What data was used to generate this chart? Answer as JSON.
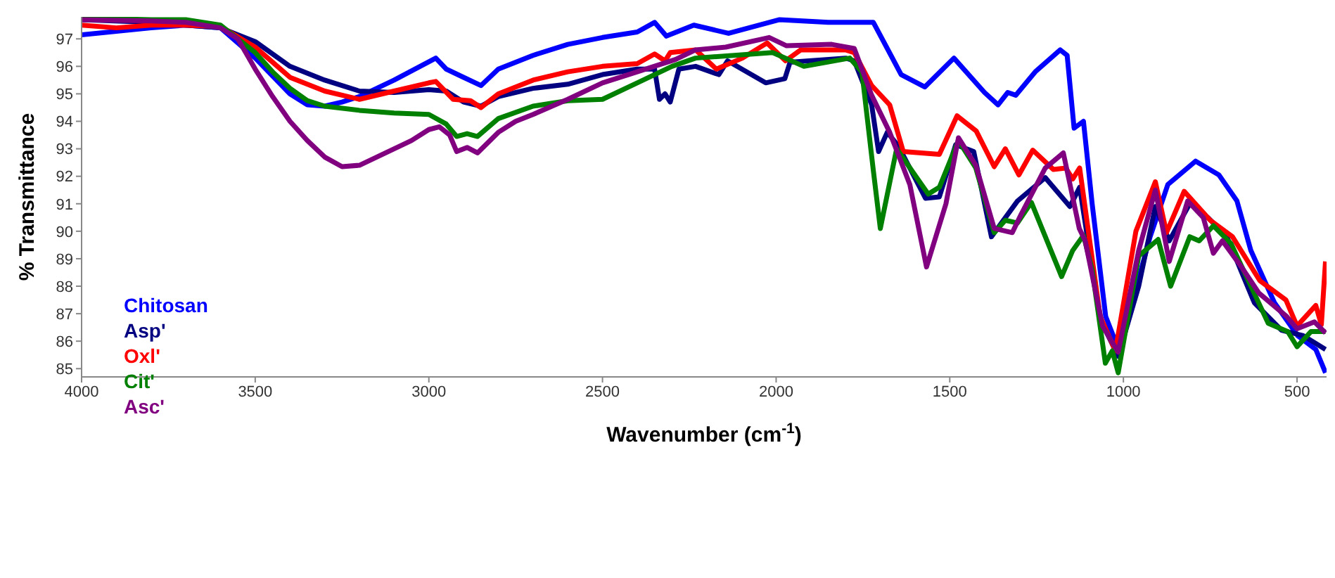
{
  "chart_data": {
    "type": "line",
    "xlabel": "Wavenumber (cm$^{-1}$)",
    "ylabel": "% Transmittance",
    "xlim": [
      4000,
      415
    ],
    "ylim": [
      84.7,
      97.8
    ],
    "xticks": [
      4000,
      3500,
      3000,
      2500,
      2000,
      1500,
      1000,
      500
    ],
    "yticks": [
      85,
      86,
      87,
      88,
      89,
      90,
      91,
      92,
      93,
      94,
      95,
      96,
      97
    ],
    "legend": "left",
    "marker": "none",
    "line_style": "solid",
    "series": [
      {
        "name": "Chitosan",
        "color": "#0000ff",
        "x": [
          4000,
          3800,
          3700,
          3600,
          3500,
          3400,
          3350,
          3300,
          3250,
          3200,
          3100,
          2980,
          2950,
          2900,
          2850,
          2800,
          2700,
          2600,
          2500,
          2400,
          2350,
          2316,
          2237,
          2137,
          1990,
          1850,
          1720,
          1640,
          1572,
          1488,
          1400,
          1361,
          1333,
          1310,
          1254,
          1182,
          1162,
          1142,
          1115,
          1090,
          1051,
          1011,
          975,
          923,
          872,
          792,
          725,
          673,
          633,
          565,
          498,
          446,
          418
        ],
        "values": [
          97.15,
          97.4,
          97.5,
          97.4,
          96.3,
          95.0,
          94.6,
          94.55,
          94.7,
          94.9,
          95.5,
          96.3,
          95.9,
          95.6,
          95.3,
          95.9,
          96.4,
          96.8,
          97.05,
          97.25,
          97.6,
          97.1,
          97.5,
          97.2,
          97.7,
          97.6,
          97.6,
          95.7,
          95.25,
          96.3,
          95.05,
          94.6,
          95.05,
          94.95,
          95.8,
          96.6,
          96.4,
          93.75,
          94.0,
          91.0,
          86.9,
          85.6,
          87.4,
          89.8,
          91.7,
          92.55,
          92.05,
          91.1,
          89.3,
          87.4,
          86.2,
          85.7,
          84.85
        ]
      },
      {
        "name": "Asp'",
        "color": "#000080",
        "x": [
          4000,
          3800,
          3700,
          3600,
          3500,
          3400,
          3300,
          3200,
          3100,
          3000,
          2950,
          2900,
          2850,
          2800,
          2700,
          2600,
          2500,
          2400,
          2350,
          2336,
          2320,
          2305,
          2280,
          2232,
          2165,
          2140,
          2030,
          1975,
          1960,
          1800,
          1775,
          1725,
          1705,
          1680,
          1648,
          1570,
          1530,
          1483,
          1431,
          1380,
          1305,
          1225,
          1154,
          1126,
          1067,
          1015,
          956,
          908,
          868,
          809,
          757,
          702,
          623,
          545,
          482,
          418
        ],
        "values": [
          97.7,
          97.6,
          97.5,
          97.4,
          96.9,
          96.0,
          95.5,
          95.1,
          95.05,
          95.15,
          95.1,
          94.7,
          94.55,
          94.9,
          95.2,
          95.35,
          95.7,
          95.9,
          95.9,
          94.8,
          95.0,
          94.7,
          95.9,
          96.0,
          95.7,
          96.2,
          95.4,
          95.55,
          96.15,
          96.3,
          96.2,
          94.6,
          92.9,
          93.6,
          93.1,
          91.2,
          91.25,
          93.15,
          92.9,
          89.8,
          91.1,
          91.95,
          90.9,
          91.6,
          86.8,
          85.45,
          88.0,
          90.9,
          89.65,
          91.0,
          90.5,
          89.8,
          87.4,
          86.4,
          86.2,
          85.7
        ]
      },
      {
        "name": "Oxl'",
        "color": "#ff0000",
        "x": [
          4000,
          3900,
          3800,
          3700,
          3600,
          3500,
          3400,
          3300,
          3200,
          3100,
          3000,
          2980,
          2930,
          2880,
          2850,
          2800,
          2700,
          2600,
          2500,
          2400,
          2350,
          2320,
          2305,
          2232,
          2172,
          2097,
          2026,
          1973,
          1929,
          1800,
          1775,
          1725,
          1673,
          1634,
          1530,
          1479,
          1424,
          1372,
          1340,
          1301,
          1261,
          1202,
          1166,
          1146,
          1126,
          1067,
          1023,
          964,
          908,
          876,
          825,
          750,
          686,
          607,
          532,
          500,
          446,
          430,
          418
        ],
        "values": [
          97.5,
          97.4,
          97.5,
          97.5,
          97.45,
          96.7,
          95.6,
          95.1,
          94.8,
          95.1,
          95.4,
          95.45,
          94.8,
          94.75,
          94.5,
          95.0,
          95.5,
          95.8,
          96.0,
          96.1,
          96.45,
          96.2,
          96.5,
          96.6,
          95.9,
          96.3,
          96.85,
          96.2,
          96.6,
          96.6,
          96.5,
          95.3,
          94.6,
          92.9,
          92.8,
          94.2,
          93.65,
          92.35,
          93.0,
          92.05,
          92.95,
          92.25,
          92.3,
          91.9,
          92.3,
          86.9,
          85.65,
          90.0,
          91.8,
          89.95,
          91.45,
          90.4,
          89.8,
          88.2,
          87.5,
          86.55,
          87.3,
          86.6,
          88.9
        ]
      },
      {
        "name": "Cit'",
        "color": "#008000",
        "x": [
          4000,
          3800,
          3700,
          3600,
          3500,
          3450,
          3400,
          3350,
          3300,
          3200,
          3100,
          3000,
          2950,
          2920,
          2890,
          2860,
          2800,
          2700,
          2600,
          2500,
          2400,
          2300,
          2232,
          2010,
          1920,
          1788,
          1753,
          1720,
          1700,
          1653,
          1562,
          1530,
          1475,
          1425,
          1372,
          1340,
          1305,
          1265,
          1178,
          1146,
          1115,
          1090,
          1052,
          1032,
          1015,
          956,
          900,
          864,
          809,
          782,
          741,
          690,
          583,
          527,
          500,
          460,
          418
        ],
        "values": [
          97.75,
          97.7,
          97.7,
          97.5,
          96.5,
          95.8,
          95.2,
          94.75,
          94.55,
          94.4,
          94.3,
          94.25,
          93.9,
          93.45,
          93.55,
          93.45,
          94.1,
          94.55,
          94.75,
          94.8,
          95.4,
          96.0,
          96.3,
          96.5,
          96.0,
          96.3,
          95.8,
          92.2,
          90.1,
          93.0,
          91.35,
          91.6,
          93.3,
          92.3,
          89.95,
          90.4,
          90.3,
          91.05,
          88.35,
          89.3,
          89.85,
          88.6,
          85.2,
          85.65,
          84.85,
          89.1,
          89.7,
          88.0,
          89.8,
          89.65,
          90.2,
          89.55,
          86.65,
          86.35,
          85.8,
          86.35,
          86.35
        ]
      },
      {
        "name": "Asc'",
        "color": "#800080",
        "x": [
          4000,
          3800,
          3700,
          3600,
          3550,
          3500,
          3450,
          3400,
          3350,
          3300,
          3250,
          3200,
          3150,
          3100,
          3050,
          3000,
          2970,
          2940,
          2920,
          2890,
          2860,
          2800,
          2750,
          2700,
          2600,
          2500,
          2400,
          2290,
          2232,
          2145,
          2020,
          1970,
          1840,
          1775,
          1725,
          1673,
          1615,
          1567,
          1511,
          1475,
          1425,
          1372,
          1320,
          1295,
          1225,
          1173,
          1127,
          1110,
          1060,
          1015,
          956,
          908,
          868,
          815,
          770,
          741,
          715,
          660,
          610,
          530,
          500,
          450,
          418
        ],
        "values": [
          97.7,
          97.65,
          97.6,
          97.4,
          97.0,
          95.9,
          94.9,
          94.0,
          93.3,
          92.7,
          92.35,
          92.4,
          92.7,
          93.0,
          93.3,
          93.7,
          93.8,
          93.5,
          92.9,
          93.05,
          92.85,
          93.6,
          94.0,
          94.25,
          94.8,
          95.4,
          95.8,
          96.25,
          96.6,
          96.7,
          97.05,
          96.75,
          96.8,
          96.65,
          94.95,
          93.6,
          91.7,
          88.7,
          91.0,
          93.4,
          92.4,
          90.1,
          89.95,
          90.6,
          92.3,
          92.85,
          90.1,
          89.65,
          86.55,
          85.6,
          89.3,
          91.5,
          88.9,
          91.1,
          90.5,
          89.2,
          89.65,
          88.7,
          87.75,
          86.9,
          86.45,
          86.7,
          86.3
        ]
      }
    ]
  }
}
